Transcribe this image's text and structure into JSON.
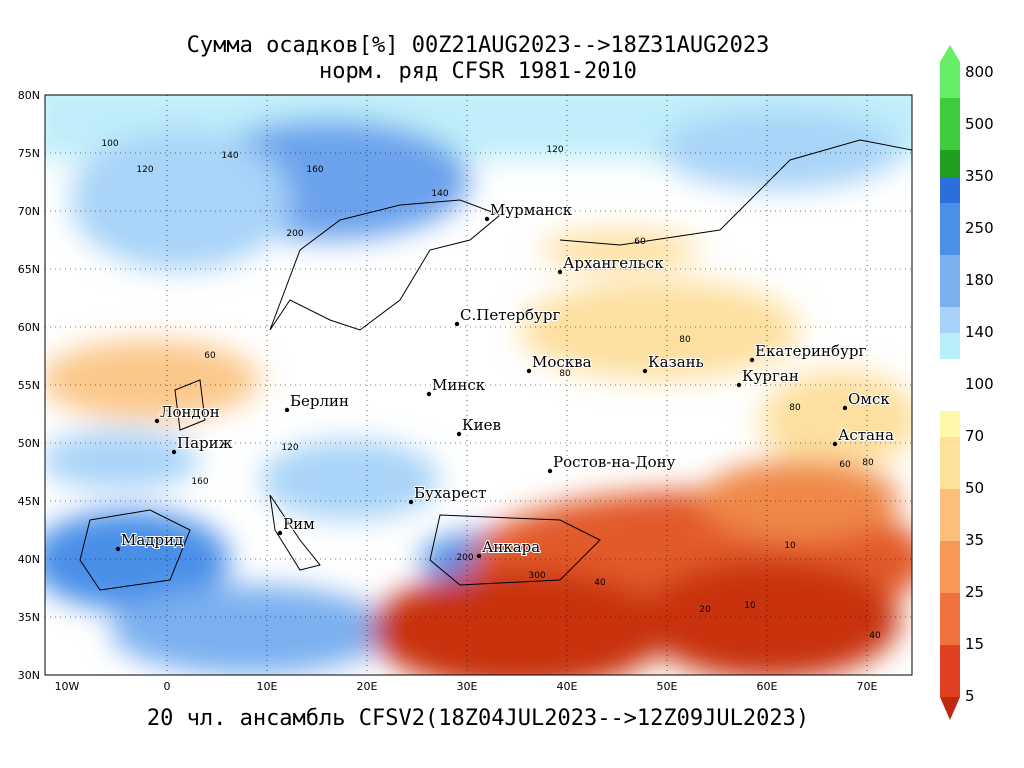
{
  "header": {
    "title": "Сумма осадков[%] 00Z21AUG2023-->18Z31AUG2023",
    "subtitle": "норм. ряд CFSR 1981-2010"
  },
  "footer": "20 чл. ансамбль CFSV2(18Z04JUL2023-->12Z09JUL2023)",
  "lat_labels": [
    "80N",
    "75N",
    "70N",
    "65N",
    "60N",
    "55N",
    "50N",
    "45N",
    "40N",
    "35N",
    "30N"
  ],
  "lon_labels": [
    "10W",
    "0",
    "10E",
    "20E",
    "30E",
    "40E",
    "50E",
    "60E",
    "70E"
  ],
  "cities": [
    "Мурманск",
    "Архангельск",
    "С.Петербург",
    "Москва",
    "Казань",
    "Екатеринбург",
    "Курган",
    "Омск",
    "Астана",
    "Минск",
    "Берлин",
    "Лондон",
    "Париж",
    "Киев",
    "Ростов-на-Дону",
    "Бухарест",
    "Рим",
    "Мадрид",
    "Анкара"
  ],
  "contour_labels": [
    "100",
    "140",
    "120",
    "160",
    "140",
    "120",
    "200",
    "60",
    "80",
    "80",
    "60",
    "80",
    "120",
    "160",
    "200",
    "300",
    "40",
    "20",
    "10",
    "10",
    "40",
    "80",
    "60"
  ],
  "colorbar": {
    "labels": [
      "800",
      "500",
      "350",
      "250",
      "180",
      "140",
      "100",
      "70",
      "50",
      "35",
      "25",
      "15",
      "5"
    ]
  }
}
